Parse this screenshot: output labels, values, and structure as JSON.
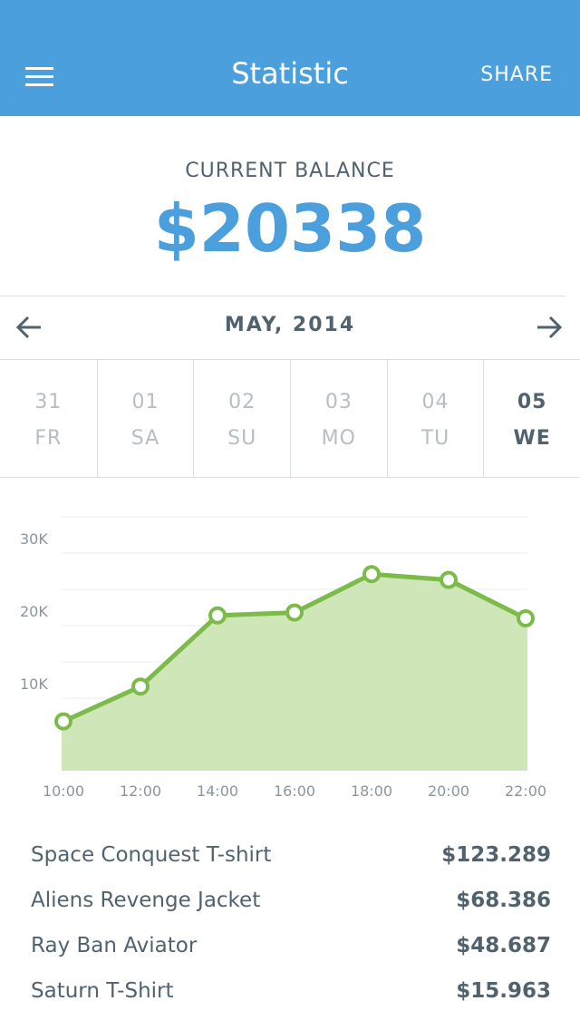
{
  "header": {
    "title": "Statistic",
    "action": "SHARE"
  },
  "balance": {
    "label": "CURRENT BALANCE",
    "amount": "$20338"
  },
  "month_nav": {
    "label": "MAY, 2014"
  },
  "days": [
    {
      "date": "31",
      "weekday": "FR",
      "selected": false
    },
    {
      "date": "01",
      "weekday": "SA",
      "selected": false
    },
    {
      "date": "02",
      "weekday": "SU",
      "selected": false
    },
    {
      "date": "03",
      "weekday": "MO",
      "selected": false
    },
    {
      "date": "04",
      "weekday": "TU",
      "selected": false
    },
    {
      "date": "05",
      "weekday": "WE",
      "selected": true
    }
  ],
  "chart_data": {
    "type": "area",
    "categories": [
      "10:00",
      "12:00",
      "14:00",
      "16:00",
      "18:00",
      "20:00",
      "22:00"
    ],
    "values": [
      6800,
      11600,
      21400,
      21800,
      27100,
      26300,
      21000
    ],
    "color": "#7cbb4a",
    "fill": "#cfe6b8",
    "ylim": [
      0,
      35000
    ],
    "yticks": [
      {
        "value": 10000,
        "label": "10K"
      },
      {
        "value": 20000,
        "label": "20K"
      },
      {
        "value": 30000,
        "label": "30K"
      }
    ],
    "minor_gridlines": [
      5000,
      15000,
      25000,
      35000
    ],
    "grid": true
  },
  "items": [
    {
      "name": "Space Conquest T-shirt",
      "price": "$123.289"
    },
    {
      "name": "Aliens Revenge Jacket",
      "price": "$68.386"
    },
    {
      "name": "Ray Ban Aviator",
      "price": "$48.687"
    },
    {
      "name": "Saturn T-Shirt",
      "price": "$15.963"
    }
  ]
}
